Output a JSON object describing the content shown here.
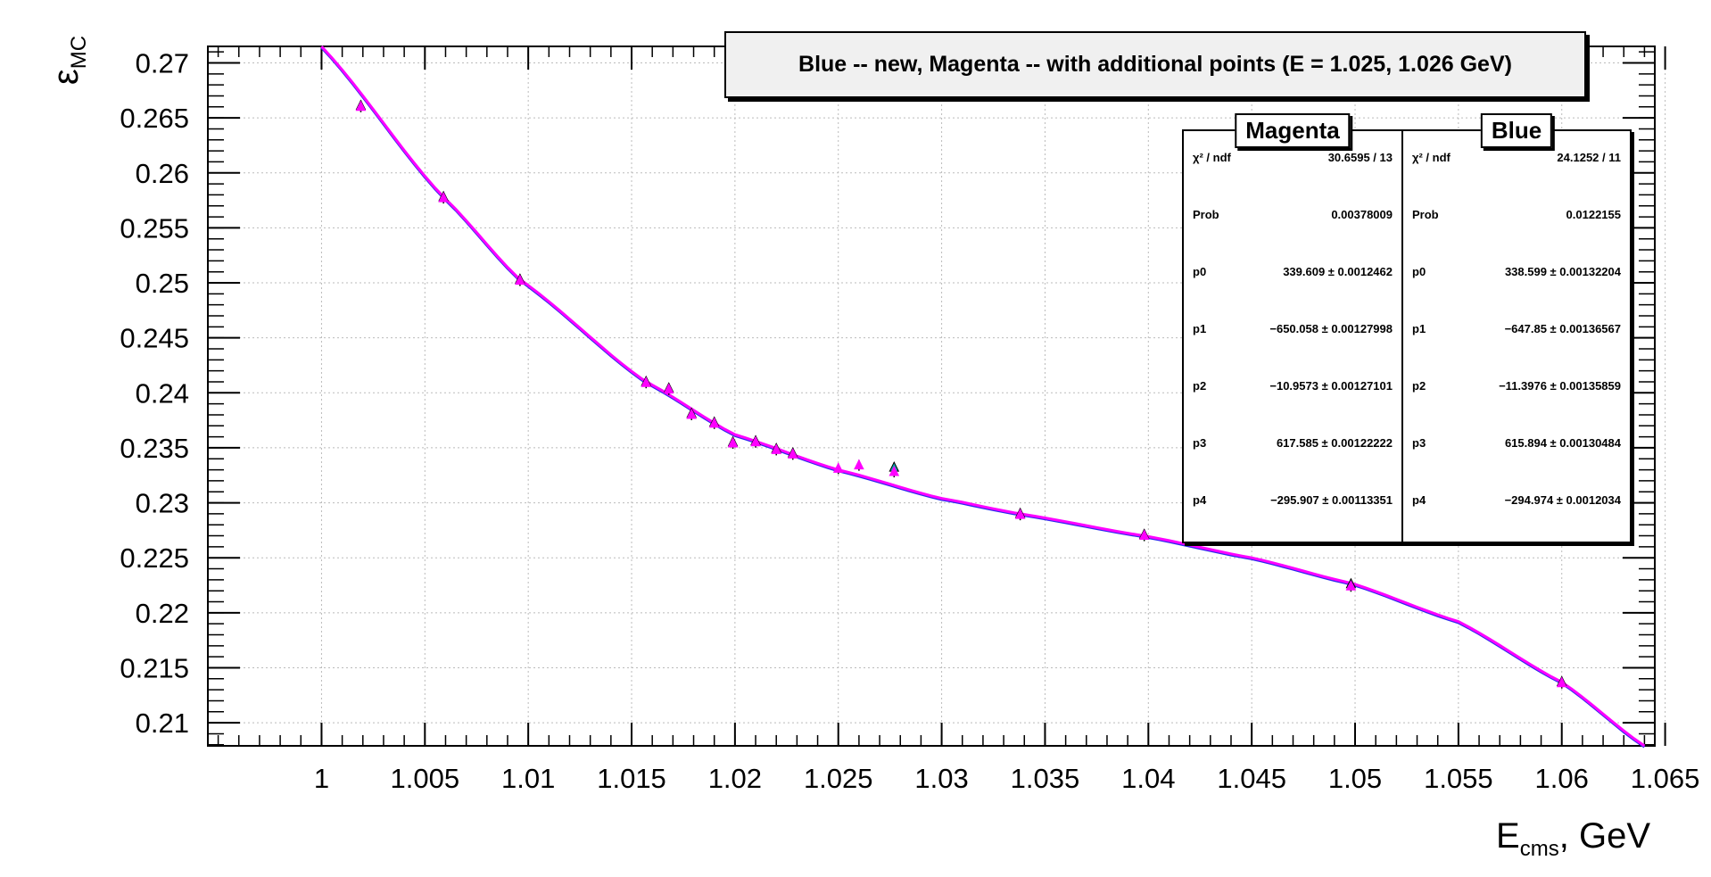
{
  "title": "Blue -- new, Magenta -- with additional points (E = 1.025, 1.026 GeV)",
  "axes": {
    "ylabel_main": "ε",
    "ylabel_sub": "MC",
    "xlabel_main": "E",
    "xlabel_sub": "cms",
    "xlabel_suffix": ", GeV"
  },
  "stats_boxes": [
    {
      "name": "Magenta",
      "rows": [
        {
          "label": "χ² / ndf",
          "value": "30.6595 / 13"
        },
        {
          "label": "Prob",
          "value": "0.00378009"
        },
        {
          "label": "p0",
          "value": "339.609 ± 0.0012462"
        },
        {
          "label": "p1",
          "value": "−650.058 ± 0.00127998"
        },
        {
          "label": "p2",
          "value": "−10.9573 ± 0.00127101"
        },
        {
          "label": "p3",
          "value": "617.585 ± 0.00122222"
        },
        {
          "label": "p4",
          "value": "−295.907 ± 0.00113351"
        }
      ]
    },
    {
      "name": "Blue",
      "rows": [
        {
          "label": "χ² / ndf",
          "value": "24.1252 / 11"
        },
        {
          "label": "Prob",
          "value": "0.0122155"
        },
        {
          "label": "p0",
          "value": "338.599 ± 0.00132204"
        },
        {
          "label": "p1",
          "value": "−647.85 ± 0.00136567"
        },
        {
          "label": "p2",
          "value": "−11.3976 ± 0.00135859"
        },
        {
          "label": "p3",
          "value": "615.894 ± 0.00130484"
        },
        {
          "label": "p4",
          "value": "−294.974 ± 0.0012034"
        }
      ]
    }
  ],
  "chart_data": {
    "type": "scatter",
    "title": "Blue -- new, Magenta -- with additional points (E = 1.025, 1.026 GeV)",
    "xlim": [
      0.9945,
      1.0645
    ],
    "ylim": [
      0.2079,
      0.2715
    ],
    "x_ticks": [
      1,
      1.005,
      1.01,
      1.015,
      1.02,
      1.025,
      1.03,
      1.035,
      1.04,
      1.045,
      1.05,
      1.055,
      1.06,
      1.065
    ],
    "x_tick_labels": [
      "1",
      "1.005",
      "1.01",
      "1.015",
      "1.02",
      "1.025",
      "1.03",
      "1.035",
      "1.04",
      "1.045",
      "1.05",
      "1.055",
      "1.06",
      "1.065"
    ],
    "y_ticks": [
      0.21,
      0.215,
      0.22,
      0.225,
      0.23,
      0.235,
      0.24,
      0.245,
      0.25,
      0.255,
      0.26,
      0.265,
      0.27
    ],
    "y_tick_labels": [
      "0.21",
      "0.215",
      "0.22",
      "0.225",
      "0.23",
      "0.235",
      "0.24",
      "0.245",
      "0.25",
      "0.255",
      "0.26",
      "0.265",
      "0.27"
    ],
    "grid": true,
    "fit_function": "pol4",
    "series": [
      {
        "name": "Blue",
        "color": "#2a2aee",
        "points": [
          {
            "x": 1.0019,
            "y": 0.2661
          },
          {
            "x": 1.0059,
            "y": 0.2578
          },
          {
            "x": 1.0096,
            "y": 0.2503
          },
          {
            "x": 1.0157,
            "y": 0.241
          },
          {
            "x": 1.0168,
            "y": 0.2404
          },
          {
            "x": 1.0179,
            "y": 0.2381
          },
          {
            "x": 1.019,
            "y": 0.2373
          },
          {
            "x": 1.0199,
            "y": 0.2355
          },
          {
            "x": 1.021,
            "y": 0.2356
          },
          {
            "x": 1.022,
            "y": 0.2349
          },
          {
            "x": 1.0228,
            "y": 0.2345
          },
          {
            "x": 1.0277,
            "y": 0.2332
          },
          {
            "x": 1.0338,
            "y": 0.229
          },
          {
            "x": 1.0398,
            "y": 0.2271
          },
          {
            "x": 1.0498,
            "y": 0.2226
          },
          {
            "x": 1.06,
            "y": 0.2137
          }
        ]
      },
      {
        "name": "Magenta",
        "color": "#ff00ff",
        "points": [
          {
            "x": 1.0019,
            "y": 0.266
          },
          {
            "x": 1.0059,
            "y": 0.2577
          },
          {
            "x": 1.0096,
            "y": 0.2502
          },
          {
            "x": 1.0157,
            "y": 0.2409
          },
          {
            "x": 1.0168,
            "y": 0.2403
          },
          {
            "x": 1.0179,
            "y": 0.238
          },
          {
            "x": 1.019,
            "y": 0.2372
          },
          {
            "x": 1.0199,
            "y": 0.2354
          },
          {
            "x": 1.021,
            "y": 0.2355
          },
          {
            "x": 1.022,
            "y": 0.2348
          },
          {
            "x": 1.0228,
            "y": 0.2344
          },
          {
            "x": 1.025,
            "y": 0.2331
          },
          {
            "x": 1.026,
            "y": 0.2334
          },
          {
            "x": 1.0277,
            "y": 0.2328
          },
          {
            "x": 1.0338,
            "y": 0.2289
          },
          {
            "x": 1.0398,
            "y": 0.227
          },
          {
            "x": 1.0498,
            "y": 0.2224
          },
          {
            "x": 1.06,
            "y": 0.2136
          }
        ]
      }
    ]
  }
}
